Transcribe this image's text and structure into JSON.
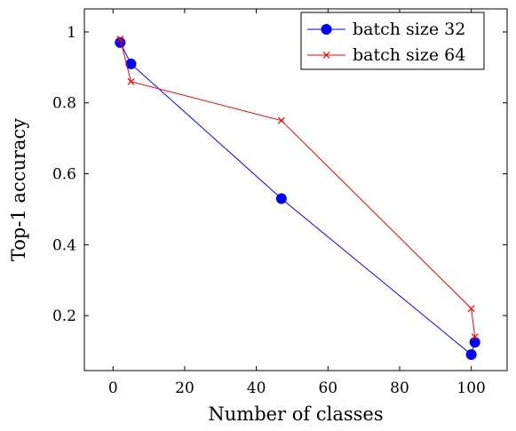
{
  "chart_data": {
    "type": "line",
    "xlabel": "Number of classes",
    "ylabel": "Top-1 accuracy",
    "xlim": [
      -8,
      110
    ],
    "ylim": [
      0.045,
      1.065
    ],
    "grid": false,
    "legend_position": "top-right",
    "x_ticks": [
      0,
      20,
      40,
      60,
      80,
      100
    ],
    "y_ticks": [
      0.2,
      0.4,
      0.6,
      0.8,
      1
    ],
    "x_tick_labels": [
      "0",
      "20",
      "40",
      "60",
      "80",
      "100"
    ],
    "y_tick_labels": [
      "0.2",
      "0.4",
      "0.6",
      "0.8",
      "1"
    ],
    "series": [
      {
        "name": "batch size 32",
        "color": "#0000ff",
        "marker": "circle",
        "x": [
          2,
          5,
          47,
          100,
          101
        ],
        "y": [
          0.97,
          0.91,
          0.53,
          0.09,
          0.125
        ]
      },
      {
        "name": "batch size 64",
        "color": "#ff0000",
        "marker": "cross",
        "x": [
          2,
          5,
          47,
          100,
          101
        ],
        "y": [
          0.98,
          0.86,
          0.75,
          0.22,
          0.14
        ]
      }
    ]
  }
}
